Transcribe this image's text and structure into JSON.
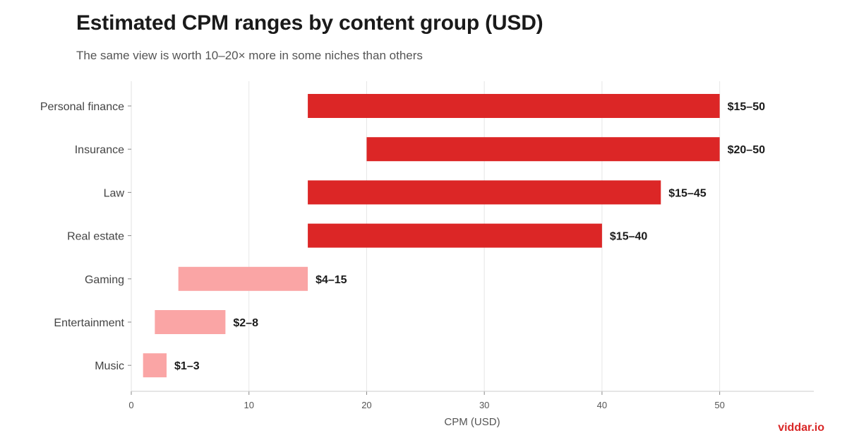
{
  "header": {
    "title": "Estimated CPM ranges by content group (USD)",
    "subtitle": "The same view is worth 10–20× more in some niches than others"
  },
  "brand": {
    "label": "viddar.io",
    "color": "#d92727"
  },
  "chart_data": {
    "type": "bar",
    "orientation": "horizontal",
    "range_bars": true,
    "xlabel": "CPM (USD)",
    "ylabel": "",
    "xlim": [
      0,
      58
    ],
    "xticks": [
      0,
      10,
      20,
      30,
      40,
      50
    ],
    "grid": "vertical",
    "categories": [
      "Personal finance",
      "Insurance",
      "Law",
      "Real estate",
      "Gaming",
      "Entertainment",
      "Music"
    ],
    "low": [
      15,
      20,
      15,
      15,
      4,
      2,
      1
    ],
    "high": [
      50,
      50,
      45,
      40,
      15,
      8,
      3
    ],
    "labels": [
      "$15–50",
      "$20–50",
      "$15–45",
      "$15–40",
      "$4–15",
      "$2–8",
      "$1–3"
    ],
    "colors": {
      "high_cpm": "#dc2626",
      "low_cpm": "#faa5a5"
    },
    "color_group": [
      "high_cpm",
      "high_cpm",
      "high_cpm",
      "high_cpm",
      "low_cpm",
      "low_cpm",
      "low_cpm"
    ]
  }
}
